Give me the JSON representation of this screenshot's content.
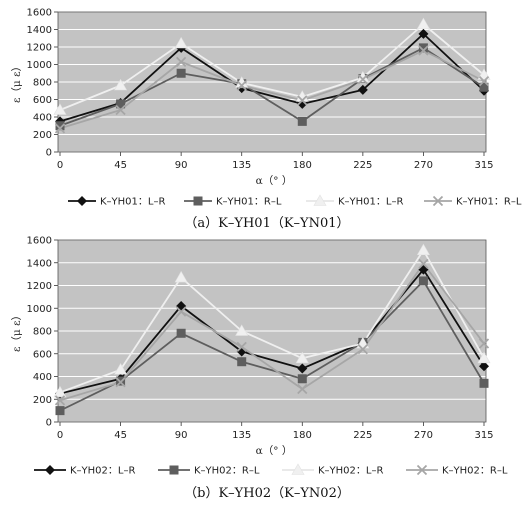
{
  "chart_data": [
    {
      "type": "line",
      "caption": "（a）K–YH01（K–YN01）",
      "xlabel": "α（°  ）",
      "ylabel": "ε（μ ε）",
      "categories": [
        "0",
        "45",
        "90",
        "135",
        "180",
        "225",
        "270",
        "315"
      ],
      "ylim": [
        0,
        1600
      ],
      "yticks": [
        0,
        200,
        400,
        600,
        800,
        1000,
        1200,
        1400,
        1600
      ],
      "plot_background": "#c3c3c3",
      "grid": true,
      "legend_position": "bottom",
      "series": [
        {
          "name": "K–YH01：L–R",
          "marker": "diamond",
          "color": "#111111",
          "values": [
            350,
            560,
            1190,
            730,
            550,
            710,
            1350,
            700
          ]
        },
        {
          "name": "K–YH01：R–L",
          "marker": "square",
          "color": "#5e5e5e",
          "values": [
            300,
            550,
            900,
            780,
            350,
            840,
            1190,
            740
          ]
        },
        {
          "name": "K–YH01：L–R",
          "marker": "triangle",
          "color": "#f0f0f0",
          "values": [
            480,
            760,
            1240,
            790,
            630,
            850,
            1460,
            880
          ]
        },
        {
          "name": "K–YH01：R–L",
          "marker": "x",
          "color": "#a6a6a6",
          "values": [
            270,
            480,
            1030,
            760,
            590,
            830,
            1160,
            810
          ]
        }
      ]
    },
    {
      "type": "line",
      "caption": "（b）K–YH02（K–YN02）",
      "xlabel": "α（°  ）",
      "ylabel": "ε（μ ε）",
      "categories": [
        "0",
        "45",
        "90",
        "135",
        "180",
        "225",
        "270",
        "315"
      ],
      "ylim": [
        0,
        1600
      ],
      "yticks": [
        0,
        200,
        400,
        600,
        800,
        1000,
        1200,
        1400,
        1600
      ],
      "plot_background": "#c3c3c3",
      "grid": true,
      "legend_position": "bottom",
      "series": [
        {
          "name": "K–YH02：L–R",
          "marker": "diamond",
          "color": "#111111",
          "values": [
            250,
            380,
            1020,
            620,
            470,
            700,
            1340,
            490
          ]
        },
        {
          "name": "K–YH02：R–L",
          "marker": "square",
          "color": "#5e5e5e",
          "values": [
            100,
            360,
            780,
            530,
            380,
            700,
            1240,
            340
          ]
        },
        {
          "name": "K–YH02：L–R",
          "marker": "triangle",
          "color": "#f0f0f0",
          "values": [
            260,
            460,
            1270,
            800,
            560,
            690,
            1510,
            560
          ]
        },
        {
          "name": "K–YH02：R–L",
          "marker": "x",
          "color": "#a6a6a6",
          "values": [
            190,
            350,
            970,
            660,
            290,
            640,
            1390,
            690
          ]
        }
      ]
    }
  ]
}
